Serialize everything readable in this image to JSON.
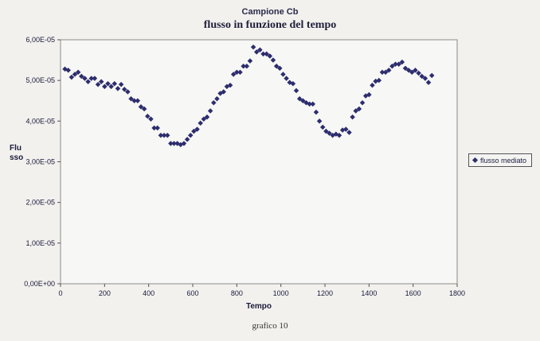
{
  "header": {
    "title": "Campione Cb",
    "subtitle": "flusso in funzione del tempo"
  },
  "caption": "grafico 10",
  "chart_data": {
    "type": "scatter",
    "title": "flusso in funzione del tempo",
    "xlabel": "Tempo",
    "ylabel": "Flusso",
    "xlim": [
      0,
      1800
    ],
    "ylim": [
      0,
      6e-05
    ],
    "x_ticks": [
      "0",
      "200",
      "400",
      "600",
      "800",
      "1000",
      "1200",
      "1400",
      "1600",
      "1800"
    ],
    "y_ticks": [
      "0,00E+00",
      "1,00E-05",
      "2,00E-05",
      "3,00E-05",
      "4,00E-05",
      "5,00E-05",
      "6,00E-05"
    ],
    "grid": false,
    "legend_position": "right",
    "marker_color": "#2d2d6e",
    "series": [
      {
        "name": "flusso mediato",
        "points": [
          [
            20,
            5.28e-05
          ],
          [
            35,
            5.25e-05
          ],
          [
            50,
            5.08e-05
          ],
          [
            65,
            5.15e-05
          ],
          [
            80,
            5.2e-05
          ],
          [
            95,
            5.1e-05
          ],
          [
            110,
            5.05e-05
          ],
          [
            125,
            4.97e-05
          ],
          [
            140,
            5.05e-05
          ],
          [
            155,
            5.05e-05
          ],
          [
            170,
            4.9e-05
          ],
          [
            185,
            4.97e-05
          ],
          [
            200,
            4.85e-05
          ],
          [
            215,
            4.92e-05
          ],
          [
            230,
            4.85e-05
          ],
          [
            245,
            4.92e-05
          ],
          [
            260,
            4.8e-05
          ],
          [
            275,
            4.9e-05
          ],
          [
            290,
            4.78e-05
          ],
          [
            305,
            4.72e-05
          ],
          [
            320,
            4.55e-05
          ],
          [
            335,
            4.5e-05
          ],
          [
            350,
            4.5e-05
          ],
          [
            365,
            4.35e-05
          ],
          [
            380,
            4.3e-05
          ],
          [
            395,
            4.12e-05
          ],
          [
            410,
            4.05e-05
          ],
          [
            425,
            3.83e-05
          ],
          [
            440,
            3.83e-05
          ],
          [
            455,
            3.65e-05
          ],
          [
            470,
            3.65e-05
          ],
          [
            485,
            3.65e-05
          ],
          [
            500,
            3.45e-05
          ],
          [
            515,
            3.45e-05
          ],
          [
            530,
            3.45e-05
          ],
          [
            545,
            3.42e-05
          ],
          [
            560,
            3.45e-05
          ],
          [
            575,
            3.55e-05
          ],
          [
            590,
            3.65e-05
          ],
          [
            605,
            3.75e-05
          ],
          [
            620,
            3.8e-05
          ],
          [
            635,
            3.95e-05
          ],
          [
            650,
            4.05e-05
          ],
          [
            665,
            4.1e-05
          ],
          [
            680,
            4.25e-05
          ],
          [
            695,
            4.45e-05
          ],
          [
            710,
            4.55e-05
          ],
          [
            725,
            4.68e-05
          ],
          [
            740,
            4.72e-05
          ],
          [
            755,
            4.85e-05
          ],
          [
            770,
            4.88e-05
          ],
          [
            785,
            5.15e-05
          ],
          [
            800,
            5.2e-05
          ],
          [
            815,
            5.2e-05
          ],
          [
            830,
            5.35e-05
          ],
          [
            845,
            5.35e-05
          ],
          [
            860,
            5.48e-05
          ],
          [
            875,
            5.82e-05
          ],
          [
            890,
            5.7e-05
          ],
          [
            905,
            5.75e-05
          ],
          [
            920,
            5.65e-05
          ],
          [
            935,
            5.65e-05
          ],
          [
            950,
            5.6e-05
          ],
          [
            965,
            5.5e-05
          ],
          [
            980,
            5.35e-05
          ],
          [
            995,
            5.3e-05
          ],
          [
            1010,
            5.15e-05
          ],
          [
            1025,
            5.05e-05
          ],
          [
            1040,
            4.95e-05
          ],
          [
            1055,
            4.92e-05
          ],
          [
            1070,
            4.75e-05
          ],
          [
            1085,
            4.55e-05
          ],
          [
            1100,
            4.5e-05
          ],
          [
            1115,
            4.45e-05
          ],
          [
            1130,
            4.42e-05
          ],
          [
            1145,
            4.42e-05
          ],
          [
            1160,
            4.22e-05
          ],
          [
            1175,
            4e-05
          ],
          [
            1190,
            3.85e-05
          ],
          [
            1205,
            3.75e-05
          ],
          [
            1220,
            3.7e-05
          ],
          [
            1235,
            3.65e-05
          ],
          [
            1250,
            3.68e-05
          ],
          [
            1265,
            3.65e-05
          ],
          [
            1280,
            3.78e-05
          ],
          [
            1295,
            3.8e-05
          ],
          [
            1310,
            3.72e-05
          ],
          [
            1325,
            4.1e-05
          ],
          [
            1340,
            4.25e-05
          ],
          [
            1355,
            4.3e-05
          ],
          [
            1370,
            4.45e-05
          ],
          [
            1385,
            4.62e-05
          ],
          [
            1400,
            4.65e-05
          ],
          [
            1415,
            4.88e-05
          ],
          [
            1430,
            4.98e-05
          ],
          [
            1445,
            5e-05
          ],
          [
            1460,
            5.2e-05
          ],
          [
            1475,
            5.2e-05
          ],
          [
            1490,
            5.25e-05
          ],
          [
            1505,
            5.35e-05
          ],
          [
            1520,
            5.4e-05
          ],
          [
            1535,
            5.4e-05
          ],
          [
            1550,
            5.45e-05
          ],
          [
            1565,
            5.3e-05
          ],
          [
            1580,
            5.25e-05
          ],
          [
            1595,
            5.2e-05
          ],
          [
            1610,
            5.25e-05
          ],
          [
            1625,
            5.18e-05
          ],
          [
            1640,
            5.1e-05
          ],
          [
            1655,
            5.05e-05
          ],
          [
            1670,
            4.95e-05
          ],
          [
            1685,
            5.12e-05
          ]
        ]
      }
    ]
  }
}
